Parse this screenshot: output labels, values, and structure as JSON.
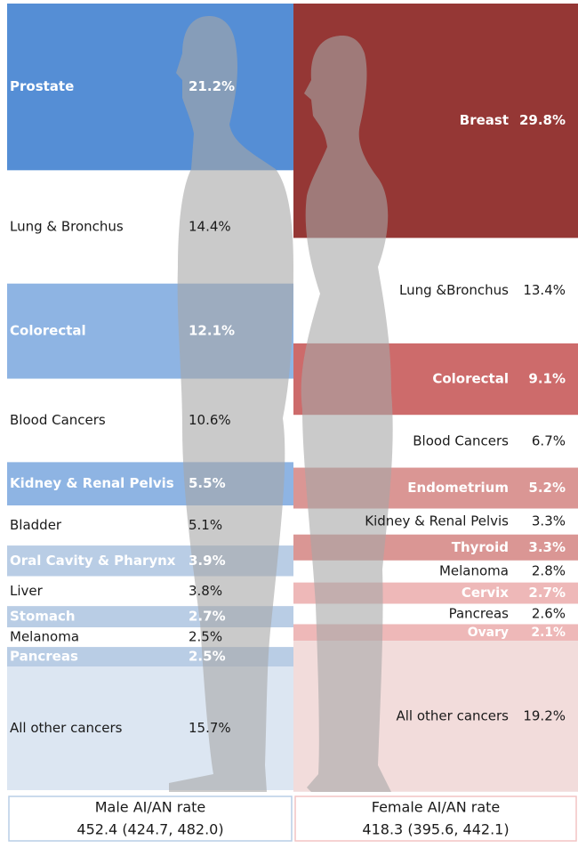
{
  "chart_data": {
    "type": "stacked-column",
    "ylim": [
      0,
      100
    ],
    "series": [
      {
        "name": "Male AI/AN rate",
        "rate": "452.4 (424.7, 482.0)",
        "border": "#b9cde5",
        "categories": [
          "Prostate",
          "Lung & Bronchus",
          "Colorectal",
          "Blood Cancers",
          "Kidney & Renal Pelvis",
          "Bladder",
          "Oral Cavity & Pharynx",
          "Liver",
          "Stomach",
          "Melanoma",
          "Pancreas",
          "All other cancers"
        ],
        "values": [
          21.2,
          14.4,
          12.1,
          10.6,
          5.5,
          5.1,
          3.9,
          3.8,
          2.7,
          2.5,
          2.5,
          15.7
        ],
        "value_labels": [
          "21.2%",
          "14.4%",
          "12.1%",
          "10.6%",
          "5.5%",
          "5.1%",
          "3.9%",
          "3.8%",
          "2.7%",
          "2.5%",
          "2.5%",
          "15.7%"
        ],
        "colors": [
          "#558ed5",
          "#ffffff",
          "#8eb4e3",
          "#ffffff",
          "#8eb4e3",
          "#ffffff",
          "#b9cde5",
          "#ffffff",
          "#b9cde5",
          "#ffffff",
          "#b9cde5",
          "#dce6f2"
        ]
      },
      {
        "name": "Female AI/AN rate",
        "rate": "418.3 (395.6, 442.1)",
        "border": "#f2c4c4",
        "categories": [
          "Breast",
          "Lung &Bronchus",
          "Colorectal",
          "Blood Cancers",
          "Endometrium",
          "Kidney & Renal Pelvis",
          "Thyroid",
          "Melanoma",
          "Cervix",
          "Pancreas",
          "Ovary",
          "All other cancers"
        ],
        "values": [
          29.8,
          13.4,
          9.1,
          6.7,
          5.2,
          3.3,
          3.3,
          2.8,
          2.7,
          2.6,
          2.1,
          19.2
        ],
        "value_labels": [
          "29.8%",
          "13.4%",
          "9.1%",
          "6.7%",
          "5.2%",
          "3.3%",
          "3.3%",
          "2.8%",
          "2.7%",
          "2.6%",
          "2.1%",
          "19.2%"
        ],
        "colors": [
          "#953735",
          "#ffffff",
          "#cd6b6b",
          "#ffffff",
          "#da9694",
          "#ffffff",
          "#da9694",
          "#ffffff",
          "#eeb8b8",
          "#ffffff",
          "#eeb8b8",
          "#f2dcdb"
        ]
      }
    ]
  }
}
